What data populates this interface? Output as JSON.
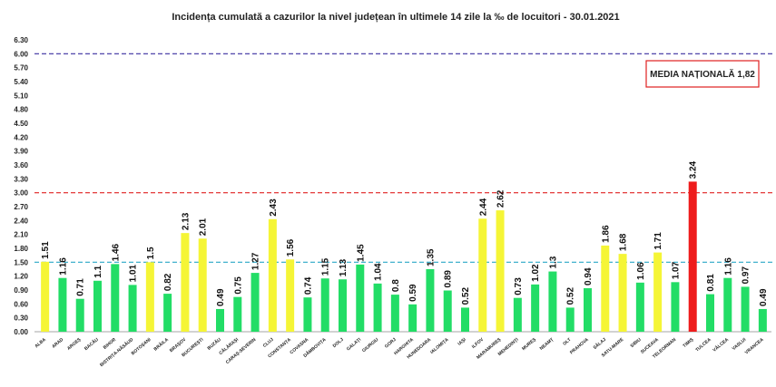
{
  "chart_data": {
    "type": "bar",
    "title": "Incidența cumulată a cazurilor la nivel județean în ultimele 14 zile la ‰ de locuitori - 30.01.2021",
    "annotation": "MEDIA NAȚIONALĂ  1,82",
    "ylim": [
      0,
      6.3
    ],
    "yticks": [
      "0.00",
      "0.30",
      "0.60",
      "0.90",
      "1.20",
      "1.50",
      "1.80",
      "2.10",
      "2.40",
      "2.70",
      "3.00",
      "3.30",
      "3.60",
      "3.90",
      "4.20",
      "4.50",
      "4.80",
      "5.10",
      "5.40",
      "5.70",
      "6.00",
      "6.30"
    ],
    "reference_lines": [
      {
        "value": 6.0,
        "color": "#3a2ea0"
      },
      {
        "value": 3.0,
        "color": "#e02020"
      },
      {
        "value": 1.5,
        "color": "#2aa7c8"
      }
    ],
    "colors": {
      "green": "#22dd66",
      "yellow": "#f5f536",
      "red": "#ee1c1c"
    },
    "categories": [
      "ALBA",
      "ARAD",
      "ARGEȘ",
      "BACĂU",
      "BIHOR",
      "BISTRIȚA-NĂSĂUD",
      "BOTOȘANI",
      "BRĂILA",
      "BRAȘOV",
      "BUCUREȘTI",
      "BUZĂU",
      "CĂLĂRAȘI",
      "CARAȘ-SEVERIN",
      "CLUJ",
      "CONSTANȚA",
      "COVASNA",
      "DÂMBOVIȚA",
      "DOLJ",
      "GALAȚI",
      "GIURGIU",
      "GORJ",
      "HARGHITA",
      "HUNEDOARA",
      "IALOMIȚA",
      "IAȘI",
      "ILFOV",
      "MARAMUREȘ",
      "MEHEDINȚI",
      "MUREȘ",
      "NEAMȚ",
      "OLT",
      "PRAHOVA",
      "SĂLAJ",
      "SATU-MARE",
      "SIBIU",
      "SUCEAVA",
      "TELEORMAN",
      "TIMIȘ",
      "TULCEA",
      "VÂLCEA",
      "VASLUI",
      "VRANCEA"
    ],
    "values": [
      1.51,
      1.16,
      0.71,
      1.1,
      1.46,
      1.01,
      1.5,
      0.82,
      2.13,
      2.01,
      0.49,
      0.75,
      1.27,
      2.43,
      1.56,
      0.74,
      1.15,
      1.13,
      1.45,
      1.04,
      0.8,
      0.59,
      1.35,
      0.89,
      0.52,
      2.44,
      2.62,
      0.73,
      1.02,
      1.3,
      0.52,
      0.94,
      1.86,
      1.68,
      1.06,
      1.71,
      1.07,
      3.24,
      0.81,
      1.16,
      0.97,
      0.49
    ],
    "value_labels": [
      "1.51",
      "1.16",
      "0.71",
      "1.1",
      "1.46",
      "1.01",
      "1.5",
      "0.82",
      "2.13",
      "2.01",
      "0.49",
      "0.75",
      "1.27",
      "2.43",
      "1.56",
      "0.74",
      "1.15",
      "1.13",
      "1.45",
      "1.04",
      "0.8",
      "0.59",
      "1.35",
      "0.89",
      "0.52",
      "2.44",
      "2.62",
      "0.73",
      "1.02",
      "1.3",
      "0.52",
      "0.94",
      "1.86",
      "1.68",
      "1.06",
      "1.71",
      "1.07",
      "3.24",
      "0.81",
      "1.16",
      "0.97",
      "0.49"
    ]
  }
}
